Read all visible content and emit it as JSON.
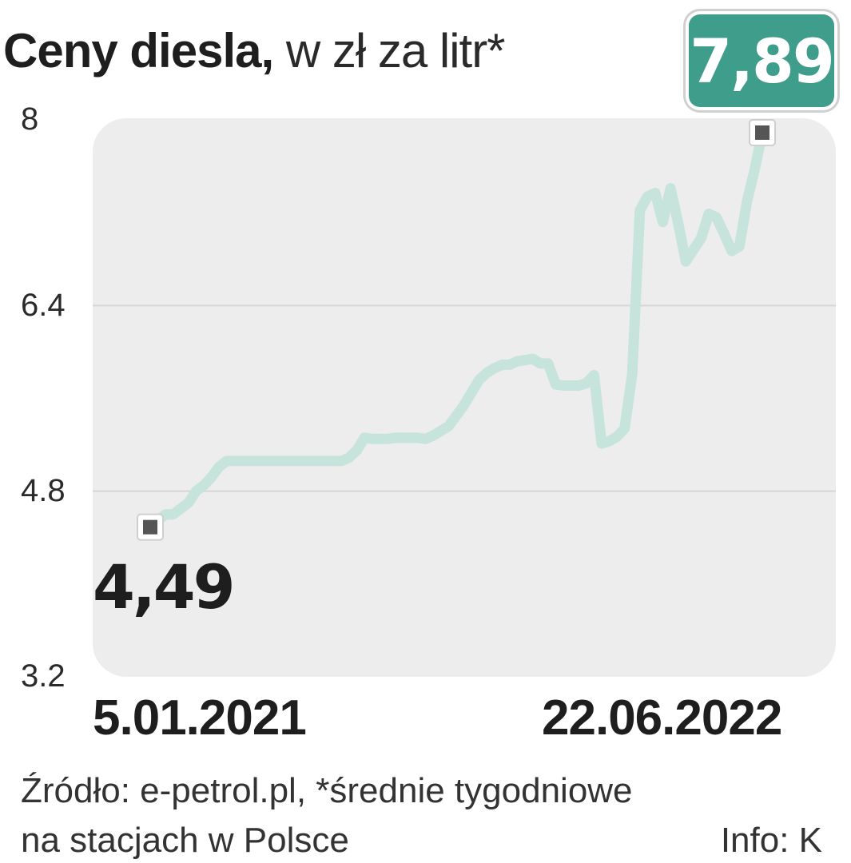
{
  "title": {
    "bold": "Ceny diesla,",
    "rest": " w zł za litr*"
  },
  "badge": {
    "value": "7,89"
  },
  "start_label": "4,49",
  "source": {
    "line1": "Źródło: e-petrol.pl, *średnie tygodniowe",
    "line2": "na stacjach w Polsce",
    "credit": "Info: K"
  },
  "colors": {
    "line": "#c6e3dc",
    "badge": "#3f9d8c",
    "plot_bg": "#ededed",
    "grid": "#d6d6d6",
    "marker": "#555555"
  },
  "chart_data": {
    "type": "line",
    "title": "Ceny diesla, w zł za litr*",
    "xlabel": "",
    "ylabel": "",
    "x_tick_labels": [
      "5.01.2021",
      "22.06.2022"
    ],
    "ylim": [
      3.2,
      8
    ],
    "yticks": [
      3.2,
      4.8,
      6.4,
      8
    ],
    "ytick_labels": [
      "3.2",
      "4.8",
      "6.4",
      "8"
    ],
    "grid": true,
    "series": [
      {
        "values": [
          4.49,
          4.55,
          4.6,
          4.6,
          4.65,
          4.7,
          4.8,
          4.85,
          4.92,
          5.01,
          5.06,
          5.06,
          5.06,
          5.06,
          5.06,
          5.06,
          5.06,
          5.06,
          5.06,
          5.06,
          5.06,
          5.06,
          5.06,
          5.06,
          5.06,
          5.06,
          5.09,
          5.15,
          5.26,
          5.25,
          5.25,
          5.25,
          5.26,
          5.26,
          5.26,
          5.26,
          5.25,
          5.28,
          5.32,
          5.36,
          5.45,
          5.54,
          5.65,
          5.76,
          5.82,
          5.86,
          5.89,
          5.89,
          5.92,
          5.93,
          5.94,
          5.9,
          5.9,
          5.72,
          5.71,
          5.71,
          5.71,
          5.73,
          5.8,
          5.21,
          5.23,
          5.27,
          5.34,
          5.81,
          7.22,
          7.34,
          7.37,
          7.12,
          7.41,
          7.11,
          6.78,
          6.88,
          6.98,
          7.19,
          7.16,
          7.02,
          6.87,
          6.91,
          7.3,
          7.57,
          7.89
        ],
        "highlight": {
          "first": 4.49,
          "last": 7.89
        }
      }
    ]
  }
}
